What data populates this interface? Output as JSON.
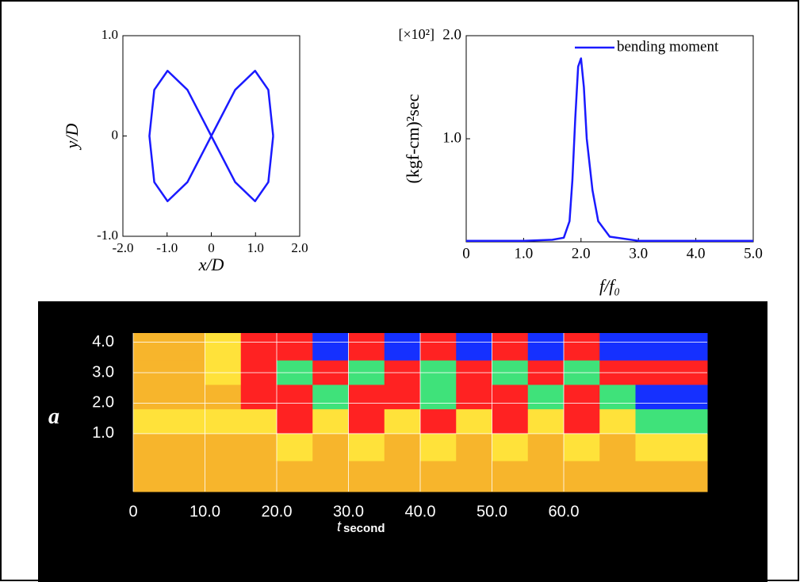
{
  "chart_data": [
    {
      "type": "line",
      "xlabel": "x/D",
      "ylabel": "y/D",
      "xlim": [
        -2,
        2
      ],
      "ylim": [
        -1,
        1
      ],
      "xticks": [
        {
          "value": -2,
          "label": "-2.0"
        },
        {
          "value": -1,
          "label": "-1.0"
        },
        0,
        {
          "value": 1,
          "label": "1.0"
        },
        {
          "value": 2,
          "label": "2.0"
        }
      ],
      "yticks": [
        {
          "value": -1,
          "label": "-1.0"
        },
        0,
        {
          "value": 1,
          "label": "1.0"
        }
      ],
      "x": [
        1.4,
        1.29,
        0.99,
        0.54,
        0,
        -0.54,
        -0.99,
        -1.29,
        -1.4,
        -1.29,
        -0.99,
        -0.54,
        0,
        0.54,
        0.99,
        1.29,
        1.4
      ],
      "series": [
        {
          "color": "#1a1aff",
          "values": [
            0,
            0.46,
            0.65,
            0.46,
            0,
            -0.46,
            -0.65,
            -0.46,
            0,
            0.46,
            0.65,
            0.46,
            0,
            -0.46,
            -0.65,
            -0.46,
            0
          ]
        }
      ]
    },
    {
      "type": "line",
      "xlabel": "f/f₀",
      "ylabel": "(kgf-cm)²sec",
      "y_scale_label": "[×10²]",
      "xlim": [
        0,
        5
      ],
      "ylim": [
        0,
        2
      ],
      "xticks": [
        0,
        {
          "value": 1,
          "label": "1.0"
        },
        {
          "value": 2,
          "label": "2.0"
        },
        {
          "value": 3,
          "label": "3.0"
        },
        {
          "value": 4,
          "label": "4.0"
        },
        {
          "value": 5,
          "label": "5.0"
        }
      ],
      "yticks": [
        {
          "value": 1,
          "label": "1.0"
        },
        {
          "value": 2,
          "label": "2.0"
        }
      ],
      "x": [
        0,
        0.5,
        1,
        1.5,
        1.7,
        1.8,
        1.85,
        1.9,
        1.95,
        2.0,
        2.05,
        2.1,
        2.2,
        2.3,
        2.5,
        3,
        4,
        5
      ],
      "series": [
        {
          "name": "bending moment",
          "color": "#1a1aff",
          "values": [
            0.01,
            0.01,
            0.01,
            0.02,
            0.04,
            0.2,
            0.6,
            1.2,
            1.7,
            1.78,
            1.5,
            1.0,
            0.5,
            0.2,
            0.05,
            0.01,
            0.01,
            0.01
          ]
        }
      ]
    },
    {
      "type": "heatmap",
      "xlabel": "t",
      "xlabel_unit": "second",
      "ylabel": "a",
      "xlim": [
        0,
        80
      ],
      "ylim": [
        -0.9,
        4.3
      ],
      "xticks": [
        0,
        {
          "value": 10,
          "label": "10.0"
        },
        {
          "value": 20,
          "label": "20.0"
        },
        {
          "value": 30,
          "label": "30.0"
        },
        {
          "value": 40,
          "label": "40.0"
        },
        {
          "value": 50,
          "label": "50.0"
        },
        {
          "value": 60,
          "label": "60.0"
        }
      ],
      "yticks": [
        {
          "value": 1,
          "label": "1.0"
        },
        {
          "value": 2,
          "label": "2.0"
        },
        {
          "value": 3,
          "label": "3.0"
        },
        {
          "value": 4,
          "label": "4.0"
        }
      ],
      "colors": [
        "#f7b52c",
        "#ffe23a",
        "#3fe27a",
        "#ff2222",
        "#1530ff"
      ],
      "x": [
        2.5,
        7.5,
        12.5,
        17.5,
        22.5,
        27.5,
        32.5,
        37.5,
        42.5,
        47.5,
        52.5,
        57.5,
        62.5,
        67.5,
        72.5
      ],
      "y": [
        3.8,
        3.0,
        2.2,
        1.4,
        0.6,
        -0.4
      ],
      "z": [
        [
          0,
          0,
          1,
          3,
          3,
          4,
          3,
          4,
          3,
          4,
          3,
          4,
          3,
          4,
          4
        ],
        [
          0,
          0,
          1,
          3,
          2,
          3,
          2,
          3,
          2,
          3,
          2,
          3,
          2,
          3,
          3
        ],
        [
          0,
          0,
          0,
          3,
          3,
          2,
          3,
          3,
          2,
          3,
          3,
          2,
          3,
          2,
          4
        ],
        [
          1,
          1,
          1,
          1,
          3,
          1,
          3,
          1,
          3,
          1,
          3,
          1,
          3,
          1,
          2
        ],
        [
          0,
          0,
          0,
          0,
          1,
          0,
          1,
          0,
          1,
          0,
          1,
          0,
          1,
          0,
          1
        ],
        [
          0,
          0,
          0,
          0,
          0,
          0,
          0,
          0,
          0,
          0,
          0,
          0,
          0,
          0,
          0
        ]
      ]
    }
  ]
}
